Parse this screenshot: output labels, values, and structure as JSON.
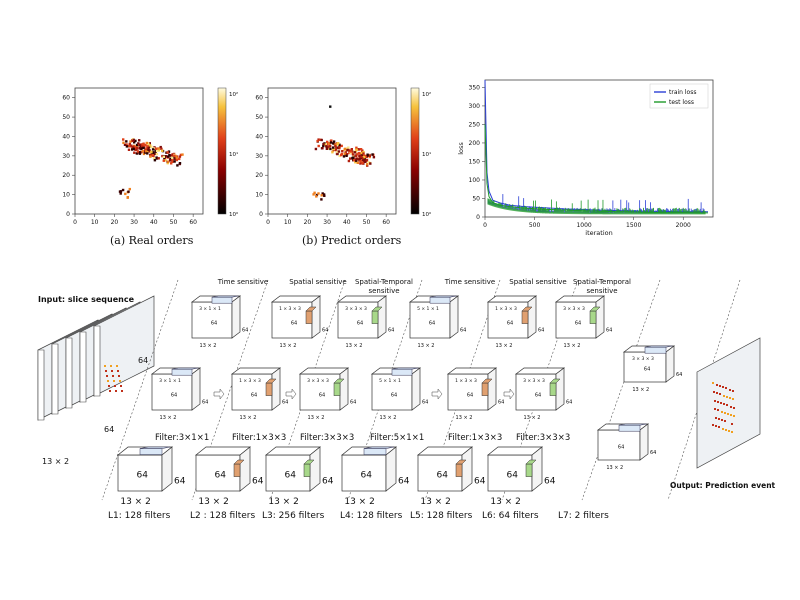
{
  "panels": {
    "real": {
      "caption": "(a)  Real orders",
      "x_ticks": [
        "0",
        "10",
        "20",
        "30",
        "40",
        "50",
        "60"
      ],
      "y_ticks": [
        "0",
        "10",
        "20",
        "30",
        "40",
        "50",
        "60"
      ],
      "cbar_ticks": [
        "10⁰",
        "10¹",
        "10²"
      ]
    },
    "predict": {
      "caption": "(b)  Predict orders",
      "x_ticks": [
        "0",
        "10",
        "20",
        "30",
        "40",
        "50",
        "60"
      ],
      "y_ticks": [
        "0",
        "10",
        "20",
        "30",
        "40",
        "50",
        "60"
      ],
      "cbar_ticks": [
        "10⁰",
        "10¹",
        "10²"
      ]
    }
  },
  "chart_data": {
    "type": "line",
    "xlabel": "iteration",
    "ylabel": "loss",
    "xlim": [
      0,
      2300
    ],
    "ylim": [
      0,
      370
    ],
    "x_ticks": [
      0,
      500,
      1000,
      1500,
      2000
    ],
    "y_ticks": [
      0,
      50,
      100,
      150,
      200,
      250,
      300,
      350
    ],
    "legend_position": "top-right",
    "series": [
      {
        "name": "train loss",
        "color": "#2b3fd6",
        "x": [
          0,
          20,
          40,
          80,
          150,
          250,
          400,
          600,
          800,
          1000,
          1200,
          1400,
          1600,
          1800,
          2000,
          2200,
          2250
        ],
        "y": [
          370,
          120,
          70,
          45,
          38,
          32,
          28,
          25,
          22,
          20,
          18,
          17,
          16,
          15,
          14,
          14,
          14
        ]
      },
      {
        "name": "test loss",
        "color": "#1f9a2a",
        "x": [
          0,
          20,
          40,
          80,
          150,
          250,
          400,
          600,
          800,
          1000,
          1200,
          1400,
          1600,
          1800,
          2000,
          2200,
          2250
        ],
        "y": [
          250,
          90,
          55,
          38,
          32,
          28,
          24,
          21,
          19,
          17,
          15,
          14,
          13,
          12,
          12,
          11,
          11
        ]
      }
    ]
  },
  "diagram": {
    "input_label": "Input: slice sequence",
    "output_label": "Output: Prediction event",
    "input_dims": {
      "side": "64",
      "bottom": "64",
      "depth": "13 × 2"
    },
    "headers": [
      "Time sensitive",
      "Spatial sensitive",
      "Spatial-Temporal sensitive",
      "Time sensitive",
      "Spatial sensitive",
      "Spatial-Temporal sensitive"
    ],
    "filters": [
      "Filter:3×1×1",
      "Filter:1×3×3",
      "Filter:3×3×3",
      "Filter:5×1×1",
      "Filter:1×3×3",
      "Filter:3×3×3"
    ],
    "top_kernel_labels": [
      "3 × 1 × 1",
      "1 × 3 × 3",
      "3 × 3 × 3",
      "5 × 1 × 1",
      "1 × 3 × 3",
      "3 × 3 × 3"
    ],
    "layers": [
      "L1: 128 filters",
      "L2 : 128 filters",
      "L3: 256  filters",
      "L4: 128 filters",
      "L5: 128  filters",
      "L6: 64  filters",
      "L7: 2 filters"
    ],
    "dim64": "64",
    "dim13": "13 × 2",
    "output_kernel": "3 × 3 × 3"
  }
}
